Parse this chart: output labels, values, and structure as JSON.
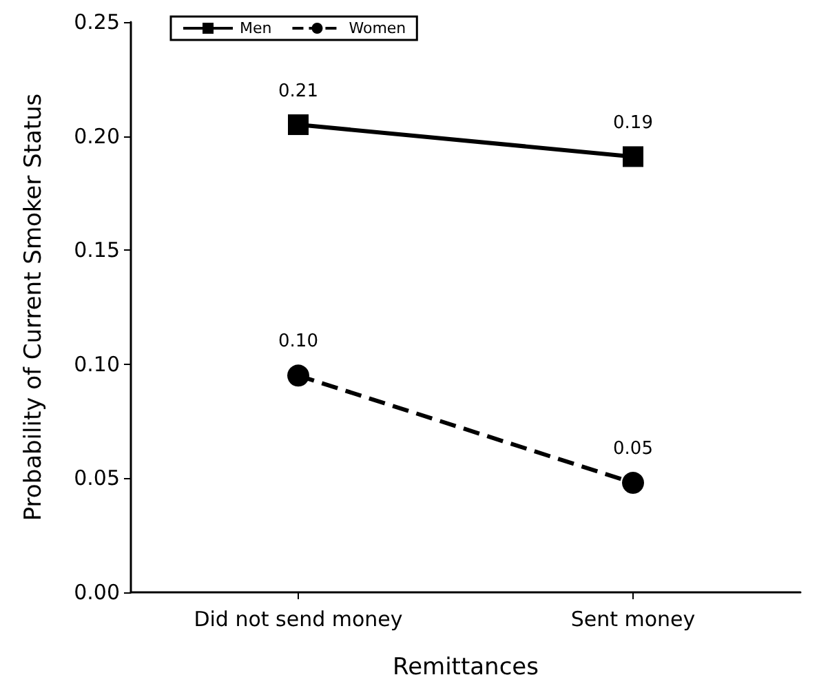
{
  "chart_data": {
    "type": "line",
    "xlabel": "Remittances",
    "ylabel": "Probability of Current Smoker Status",
    "categories": [
      "Did not send money",
      "Sent money"
    ],
    "series": [
      {
        "name": "Men",
        "color": "#000000",
        "values": [
          0.205,
          0.191
        ],
        "value_labels": [
          "0.21",
          "0.19"
        ],
        "marker": "square",
        "line_style": "solid"
      },
      {
        "name": "Women",
        "color": "#000000",
        "values": [
          0.095,
          0.048
        ],
        "value_labels": [
          "0.10",
          "0.05"
        ],
        "marker": "circle",
        "line_style": "dashed"
      }
    ],
    "ylim": [
      0,
      0.25
    ],
    "yticks": [
      "0.00",
      "0.05",
      "0.10",
      "0.15",
      "0.20",
      "0.25"
    ],
    "grid": false,
    "legend": "top left"
  }
}
